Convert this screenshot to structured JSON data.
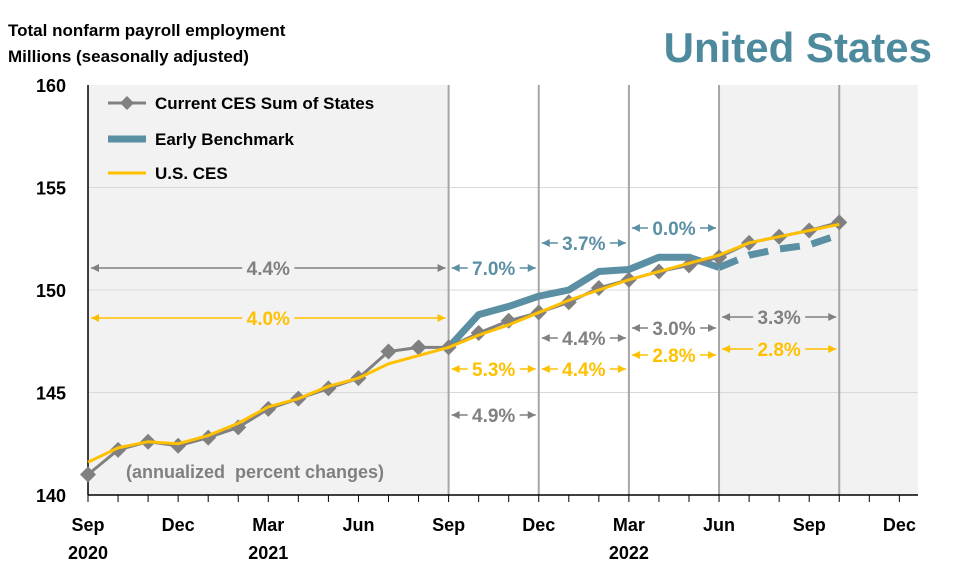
{
  "chart_data": {
    "type": "line",
    "title": "United States",
    "subtitle_lines": [
      "Total nonfarm payroll employment",
      "Millions (seasonally adjusted)"
    ],
    "ylim": [
      140,
      160
    ],
    "yticks": [
      140,
      145,
      150,
      155,
      160
    ],
    "x_months": [
      "Sep 2020",
      "Oct 2020",
      "Nov 2020",
      "Dec 2020",
      "Jan 2021",
      "Feb 2021",
      "Mar 2021",
      "Apr 2021",
      "May 2021",
      "Jun 2021",
      "Jul 2021",
      "Aug 2021",
      "Sep 2021",
      "Oct 2021",
      "Nov 2021",
      "Dec 2021",
      "Jan 2022",
      "Feb 2022",
      "Mar 2022",
      "Apr 2022",
      "May 2022",
      "Jun 2022",
      "Jul 2022",
      "Aug 2022",
      "Sep 2022",
      "Oct 2022"
    ],
    "xtick_labels": [
      {
        "m": 0,
        "label": "Sep",
        "year": "2020"
      },
      {
        "m": 3,
        "label": "Dec"
      },
      {
        "m": 6,
        "label": "Mar",
        "year": "2021"
      },
      {
        "m": 9,
        "label": "Jun"
      },
      {
        "m": 12,
        "label": "Sep"
      },
      {
        "m": 15,
        "label": "Dec"
      },
      {
        "m": 18,
        "label": "Mar",
        "year": "2022"
      },
      {
        "m": 21,
        "label": "Jun"
      },
      {
        "m": 24,
        "label": "Sep"
      },
      {
        "m": 27,
        "label": "Dec"
      }
    ],
    "series": [
      {
        "name": "Current CES Sum of States",
        "color": "#808080",
        "start": 0,
        "values": [
          141.0,
          142.2,
          142.6,
          142.4,
          142.8,
          143.3,
          144.2,
          144.7,
          145.2,
          145.7,
          147.0,
          147.2,
          147.2,
          147.9,
          148.5,
          148.9,
          149.4,
          150.1,
          150.5,
          150.9,
          151.2,
          151.6,
          152.3,
          152.6,
          152.9,
          153.3
        ]
      },
      {
        "name": "Early Benchmark",
        "color": "#5b8fa3",
        "start": 12,
        "values": [
          147.2,
          148.8,
          149.2,
          149.7,
          150.0,
          150.9,
          151.0,
          151.6,
          151.6,
          151.1
        ],
        "projected_start": 21,
        "projected_values": [
          151.1,
          151.7,
          152.0,
          152.2,
          152.7
        ]
      },
      {
        "name": "U.S. CES",
        "color": "#ffc000",
        "start": 0,
        "values": [
          141.6,
          142.3,
          142.6,
          142.5,
          142.9,
          143.5,
          144.3,
          144.7,
          145.3,
          145.7,
          146.4,
          146.8,
          147.2,
          147.8,
          148.3,
          148.9,
          149.5,
          150.0,
          150.5,
          150.9,
          151.3,
          151.7,
          152.3,
          152.6,
          152.9,
          153.2
        ]
      }
    ],
    "annotation_note": "(annualized  percent changes)",
    "annotations": [
      {
        "label": "4.4%",
        "series": "Current CES Sum of States"
      },
      {
        "label": "4.0%",
        "series": "U.S. CES"
      },
      {
        "label": "7.0%",
        "series": "Early Benchmark"
      },
      {
        "label": "5.3%",
        "series": "U.S. CES"
      },
      {
        "label": "4.9%",
        "series": "Current CES Sum of States"
      },
      {
        "label": "3.7%",
        "series": "Early Benchmark"
      },
      {
        "label": "4.4%",
        "series": "Current CES Sum of States"
      },
      {
        "label": "4.4%",
        "series": "U.S. CES"
      },
      {
        "label": "0.0%",
        "series": "Early Benchmark"
      },
      {
        "label": "3.0%",
        "series": "Current CES Sum of States"
      },
      {
        "label": "2.8%",
        "series": "U.S. CES"
      },
      {
        "label": "3.3%",
        "series": "Current CES Sum of States"
      },
      {
        "label": "2.8%",
        "series": "U.S. CES"
      }
    ],
    "legend_placement": "top-left"
  }
}
